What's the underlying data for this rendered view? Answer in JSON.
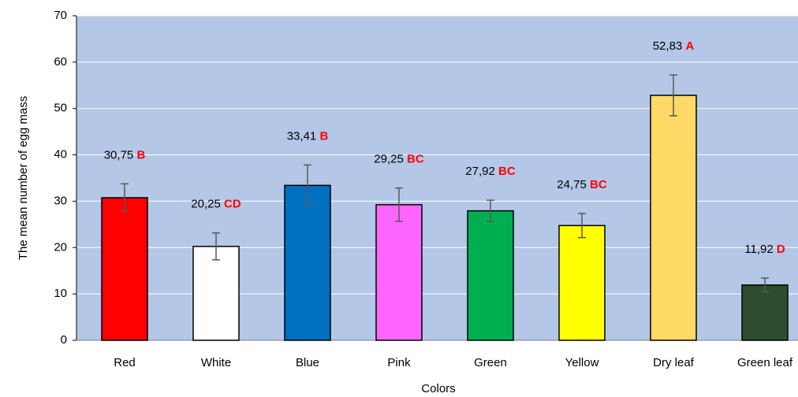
{
  "chart_data": {
    "type": "bar",
    "categories": [
      "Red",
      "White",
      "Blue",
      "Pink",
      "Green",
      "Yellow",
      "Dry leaf",
      "Green leaf"
    ],
    "values": [
      30.75,
      20.25,
      33.41,
      29.25,
      27.92,
      24.75,
      52.83,
      11.92
    ],
    "value_labels": [
      "30,75",
      "20,25",
      "33,41",
      "29,25",
      "27,92",
      "24,75",
      "52,83",
      "11,92"
    ],
    "significance": [
      "B",
      "CD",
      "B",
      "BC",
      "BC",
      "BC",
      "A",
      "D"
    ],
    "errors": [
      3.0,
      2.9,
      4.4,
      3.6,
      2.3,
      2.6,
      4.4,
      1.5
    ],
    "colors": [
      "#ff0000",
      "#ffffff",
      "#0070c0",
      "#ff66ff",
      "#00b050",
      "#ffff00",
      "#ffd966",
      "#2e4d2e"
    ],
    "error_color": "#595959",
    "significance_color": "#ff0000",
    "x_label": "Colors",
    "y_label": "The mean number of egg mass",
    "ylim": [
      0,
      70
    ],
    "yticks": [
      0,
      10,
      20,
      30,
      40,
      50,
      60,
      70
    ],
    "grid": true,
    "background": "#b4c7e7"
  }
}
